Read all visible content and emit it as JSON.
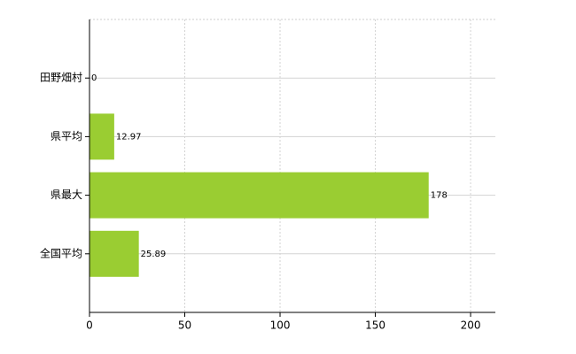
{
  "chart_data": {
    "type": "bar",
    "orientation": "horizontal",
    "categories": [
      "田野畑村",
      "県平均",
      "県最大",
      "全国平均"
    ],
    "values": [
      0,
      12.97,
      178,
      25.89
    ],
    "color": "#9acd32",
    "xlim": [
      0,
      213
    ],
    "xticks": [
      0,
      50,
      100,
      150,
      200
    ],
    "grid": true
  }
}
